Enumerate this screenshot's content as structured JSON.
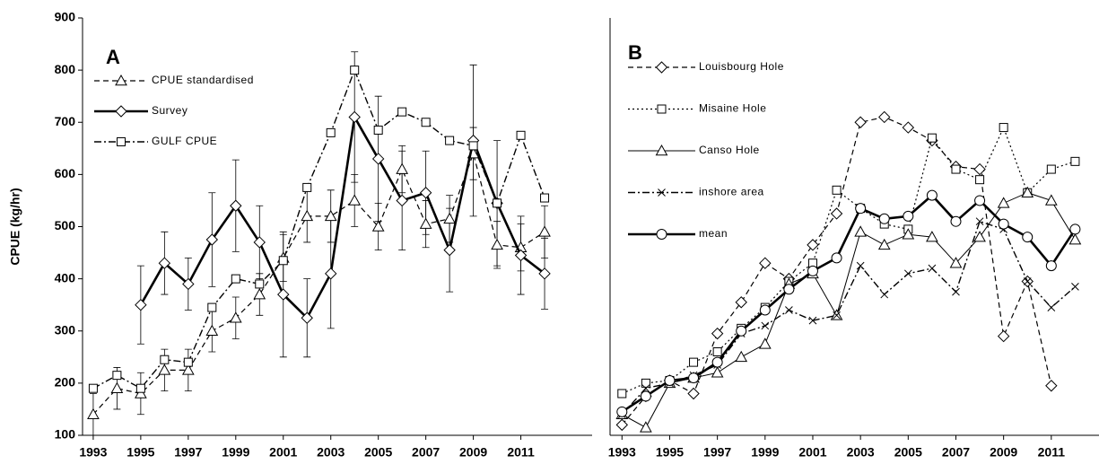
{
  "chart_data": [
    {
      "type": "line",
      "panel_label": "A",
      "y_label": "CPUE (kg/hr)",
      "x": [
        1993,
        1994,
        1995,
        1996,
        1997,
        1998,
        1999,
        2000,
        2001,
        2002,
        2003,
        2004,
        2005,
        2006,
        2007,
        2008,
        2009,
        2010,
        2011,
        2012
      ],
      "xlim": [
        1992.55,
        2014
      ],
      "xticks": [
        1993,
        1995,
        1997,
        1999,
        2001,
        2003,
        2005,
        2007,
        2009,
        2011
      ],
      "ylim": [
        100,
        900
      ],
      "yticks": [
        100,
        200,
        300,
        400,
        500,
        600,
        700,
        800,
        900
      ],
      "series": [
        {
          "name": "CPUE standardised",
          "color": "#000000",
          "marker": "triangle",
          "line_style": "dashed",
          "values": [
            140,
            190,
            180,
            225,
            225,
            300,
            325,
            370,
            440,
            520,
            520,
            550,
            500,
            610,
            505,
            515,
            640,
            465,
            460,
            490
          ],
          "errors": [
            40,
            40,
            40,
            40,
            40,
            40,
            40,
            40,
            45,
            50,
            50,
            50,
            45,
            45,
            45,
            45,
            50,
            45,
            45,
            50
          ]
        },
        {
          "name": "Survey",
          "color": "#000000",
          "marker": "diamond",
          "line_style": "bold",
          "values": [
            null,
            null,
            350,
            430,
            390,
            475,
            540,
            470,
            370,
            325,
            410,
            710,
            630,
            550,
            565,
            455,
            665,
            545,
            445,
            410
          ],
          "errors": [
            null,
            null,
            75,
            60,
            50,
            90,
            88,
            70,
            120,
            75,
            105,
            125,
            120,
            95,
            80,
            80,
            145,
            120,
            75,
            68
          ]
        },
        {
          "name": "GULF CPUE",
          "color": "#000000",
          "marker": "square",
          "line_style": "dashdot",
          "values": [
            190,
            215,
            190,
            245,
            240,
            345,
            400,
            390,
            435,
            575,
            680,
            800,
            685,
            720,
            700,
            665,
            655,
            545,
            675,
            555
          ]
        }
      ]
    },
    {
      "type": "line",
      "panel_label": "B",
      "x": [
        1993,
        1994,
        1995,
        1996,
        1997,
        1998,
        1999,
        2000,
        2001,
        2002,
        2003,
        2004,
        2005,
        2006,
        2007,
        2008,
        2009,
        2010,
        2011,
        2012
      ],
      "xlim": [
        1992.5,
        2013
      ],
      "xticks": [
        1993,
        1995,
        1997,
        1999,
        2001,
        2003,
        2005,
        2007,
        2009,
        2011
      ],
      "ylim": [
        100,
        900
      ],
      "series": [
        {
          "name": "Louisbourg Hole",
          "color": "#000000",
          "marker": "diamond",
          "line_style": "dashed",
          "values": [
            120,
            175,
            205,
            180,
            295,
            355,
            430,
            400,
            465,
            525,
            700,
            710,
            690,
            665,
            615,
            610,
            290,
            395,
            195,
            null
          ]
        },
        {
          "name": "Misaine Hole",
          "color": "#000000",
          "marker": "square",
          "line_style": "dotted",
          "values": [
            180,
            200,
            205,
            240,
            260,
            305,
            345,
            395,
            430,
            570,
            535,
            505,
            495,
            670,
            610,
            590,
            690,
            565,
            610,
            625
          ]
        },
        {
          "name": "Canso Hole",
          "color": "#000000",
          "marker": "triangle",
          "line_style": "solid",
          "values": [
            140,
            115,
            200,
            210,
            220,
            250,
            275,
            390,
            410,
            330,
            490,
            465,
            485,
            480,
            430,
            480,
            545,
            565,
            550,
            475
          ]
        },
        {
          "name": "inshore area",
          "color": "#000000",
          "marker": "cross",
          "line_style": "dashdot",
          "values": [
            140,
            190,
            200,
            215,
            235,
            295,
            310,
            340,
            320,
            330,
            425,
            370,
            410,
            420,
            375,
            510,
            495,
            395,
            345,
            385
          ]
        },
        {
          "name": "mean",
          "color": "#000000",
          "marker": "circle",
          "line_style": "bold",
          "values": [
            145,
            175,
            205,
            210,
            240,
            300,
            340,
            380,
            415,
            440,
            535,
            515,
            520,
            560,
            510,
            550,
            505,
            480,
            425,
            495
          ]
        }
      ]
    }
  ]
}
